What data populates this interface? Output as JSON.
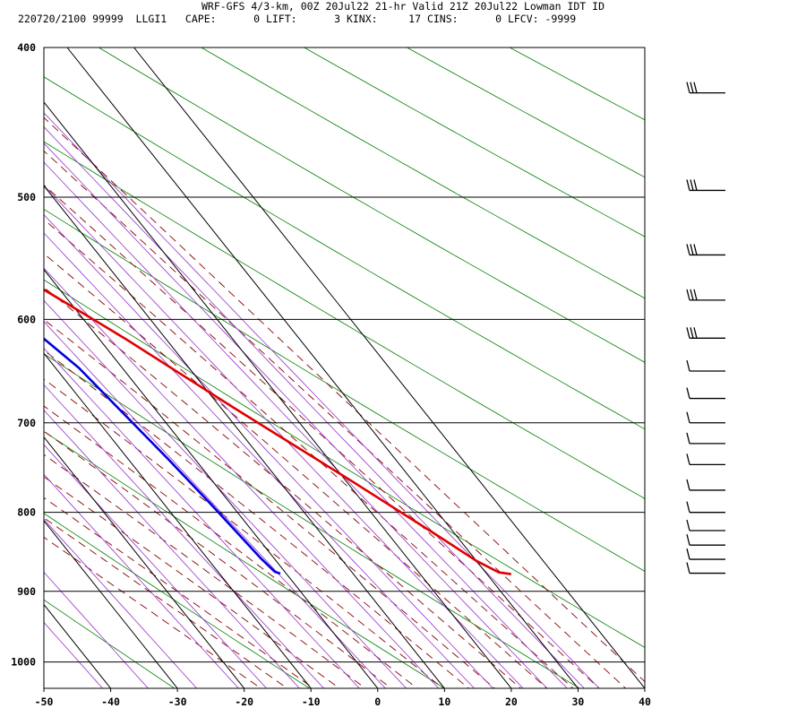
{
  "header": {
    "title": "WRF-GFS 4/3-km, 00Z 20Jul22 21-hr Valid 21Z 20Jul22 Lowman IDT ID",
    "stats": "220720/2100 99999  LLGI1   CAPE:      0 LIFT:      3 KINX:     17 CINS:      0 LFCV: -9999"
  },
  "chart_data": {
    "type": "line",
    "subtype": "skew-t log-p sounding",
    "title": "WRF-GFS 4/3-km, 00Z 20Jul22 21-hr Valid 21Z 20Jul22 Lowman IDT ID",
    "xlabel": "",
    "ylabel": "",
    "xlim": [
      -50,
      40
    ],
    "ylim": [
      1040,
      400
    ],
    "y_scale": "log (pressure)",
    "x_ticks": [
      "-50",
      "-40",
      "-30",
      "-20",
      "-10",
      "0",
      "10",
      "20",
      "30",
      "40"
    ],
    "y_ticks": [
      "400",
      "500",
      "600",
      "700",
      "800",
      "900",
      "1000"
    ],
    "grid": true,
    "series": [
      {
        "color": "#e00000",
        "points": [
          [
            -16,
            426
          ],
          [
            -10,
            475
          ],
          [
            -3,
            570
          ],
          [
            4,
            618
          ],
          [
            12,
            685
          ],
          [
            21,
            765
          ],
          [
            27,
            826
          ],
          [
            30,
            860
          ],
          [
            32,
            875
          ],
          [
            33.5,
            877
          ]
        ]
      },
      {
        "color": "#0000e0",
        "points": [
          [
            -39,
            426
          ],
          [
            -39,
            455
          ],
          [
            -39.2,
            478
          ],
          [
            -31,
            525
          ],
          [
            -17,
            570
          ],
          [
            -9,
            606
          ],
          [
            -6.5,
            645
          ],
          [
            -4,
            740
          ],
          [
            -3,
            790
          ],
          [
            -2,
            856
          ],
          [
            -1.5,
            874
          ],
          [
            -1,
            876
          ]
        ]
      }
    ],
    "background_lines": {
      "isotherm_color": "#000000",
      "dry_adiabat_color": "#008000",
      "moist_adiabat_color": "#8a0000",
      "mixing_ratio_color": "#9933cc"
    },
    "wind_barbs": {
      "color": "#000000",
      "levels": [
        428,
        495,
        545,
        583,
        617,
        648,
        675,
        700,
        722,
        745,
        774,
        800,
        822,
        840,
        858,
        876
      ]
    }
  }
}
